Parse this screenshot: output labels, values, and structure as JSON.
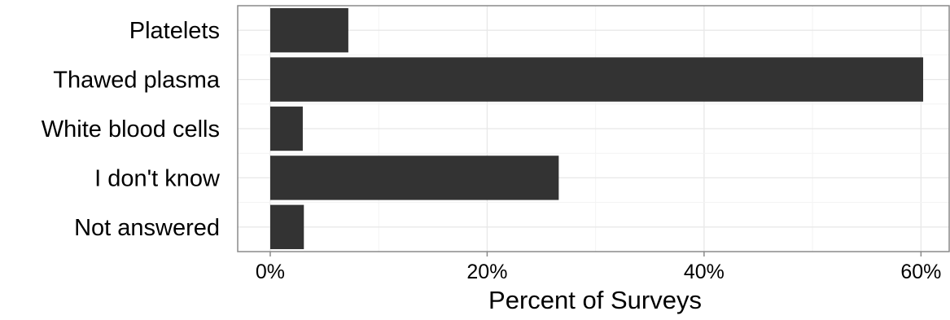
{
  "chart_data": {
    "type": "bar",
    "orientation": "horizontal",
    "categories": [
      "Platelets",
      "Thawed plasma",
      "White blood cells",
      "I don't know",
      "Not answered"
    ],
    "values": [
      7.2,
      60.2,
      3.0,
      26.6,
      3.1
    ],
    "xlabel": "Percent of Surveys",
    "ylabel": "",
    "xlim": [
      -3,
      62.6
    ],
    "x_ticks": [
      0,
      20,
      40,
      60
    ],
    "x_tick_labels": [
      "0%",
      "20%",
      "40%",
      "60%"
    ],
    "grid": true,
    "legend": "none",
    "colors": {
      "bar": "#333333",
      "grid": "#e8e8e8",
      "border": "#8a8a8a"
    }
  }
}
